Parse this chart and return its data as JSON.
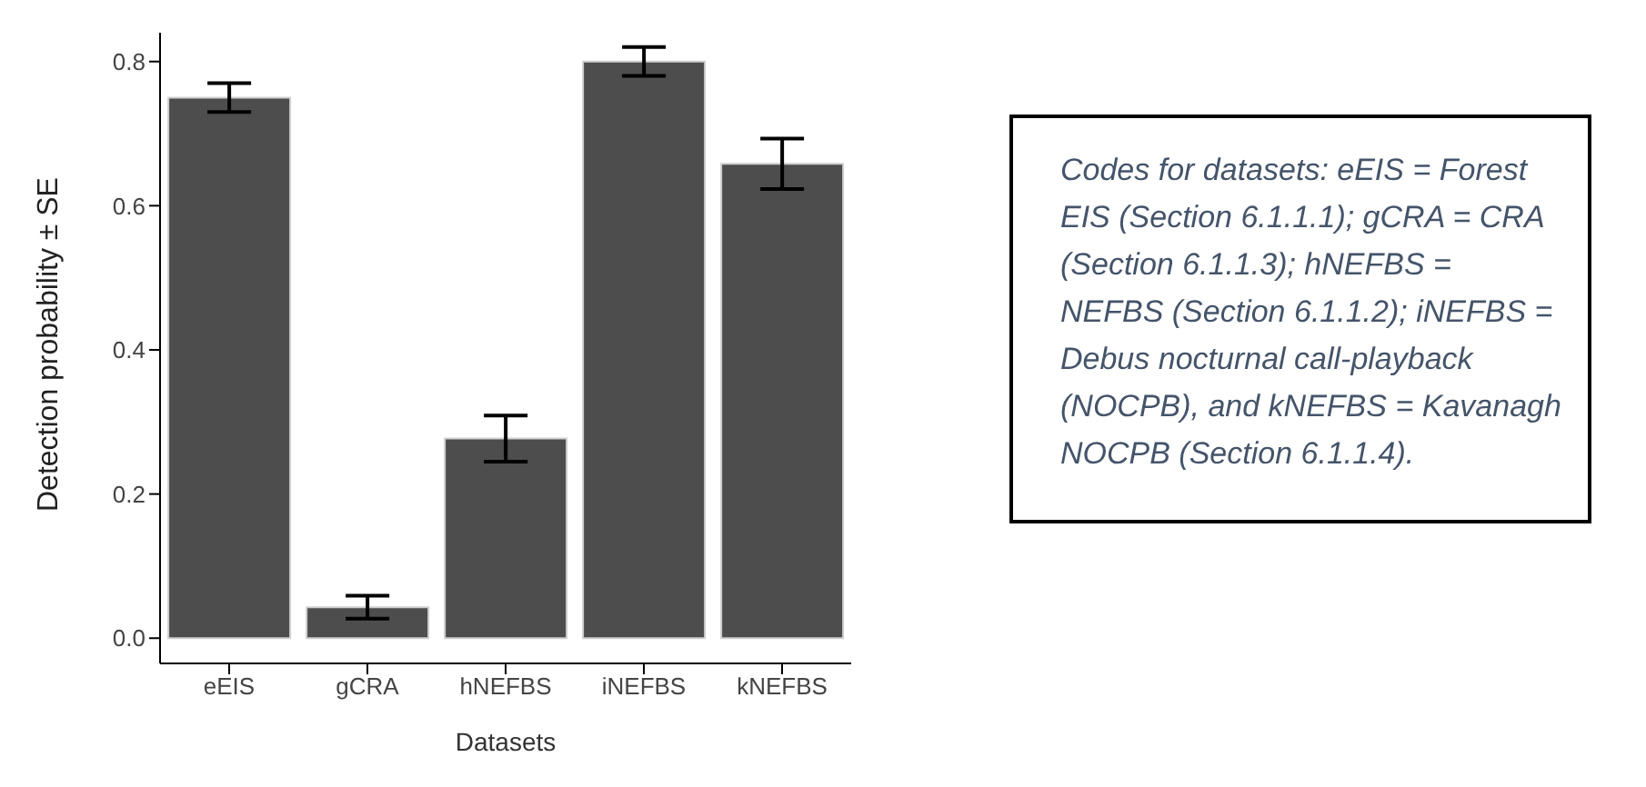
{
  "chart_data": {
    "type": "bar",
    "xlabel": "Datasets",
    "ylabel": "Detection probability ± SE",
    "categories": [
      "eEIS",
      "gCRA",
      "hNEFBS",
      "iNEFBS",
      "kNEFBS"
    ],
    "values": [
      0.75,
      0.043,
      0.277,
      0.8,
      0.658
    ],
    "errors": [
      0.02,
      0.016,
      0.032,
      0.02,
      0.035
    ],
    "color": "#4d4d4d",
    "ylim": [
      -0.035,
      0.84
    ],
    "yticks": [
      {
        "value": 0,
        "label": "0.0"
      },
      {
        "value": 0.2,
        "label": "0.2"
      },
      {
        "value": 0.4,
        "label": "0.4"
      },
      {
        "value": 0.6,
        "label": "0.6"
      },
      {
        "value": 0.8,
        "label": "0.8"
      }
    ],
    "grid": false,
    "annotations": [
      "Codes for datasets: eEIS = Forest EIS (Section 6.1.1.1); gCRA = CRA (Section 6.1.1.3); hNEFBS = NEFBS (Section 6.1.1.2); iNEFBS = Debus nocturnal call-playback (NOCPB), and kNEFBS = Kavanagh NOCPB (Section 6.1.1.4)."
    ]
  }
}
